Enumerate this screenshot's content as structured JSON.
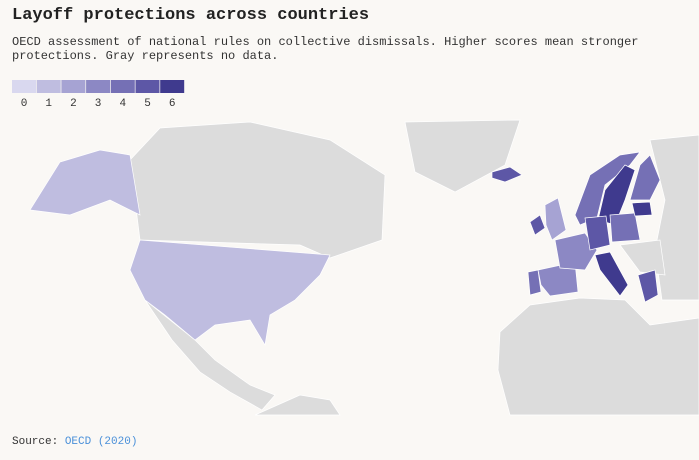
{
  "title": "Layoff protections across countries",
  "subtitle": "OECD assessment of national rules on collective dismissals. Higher scores mean stronger protections. Gray represents no data.",
  "legend": {
    "values": [
      0,
      1,
      2,
      3,
      4,
      5,
      6
    ],
    "colors": [
      "#d9d8ef",
      "#bfbde0",
      "#a6a3d3",
      "#8c88c4",
      "#7570b5",
      "#5d57a6",
      "#3f3a8e"
    ]
  },
  "map": {
    "scores": [
      1,
      5,
      5,
      2,
      4,
      6,
      4,
      3,
      4,
      3,
      5,
      4,
      6,
      5,
      6
    ]
  },
  "source": {
    "label": "Source:",
    "link": "OECD (2020)",
    "link_color": "#4a90d9"
  }
}
